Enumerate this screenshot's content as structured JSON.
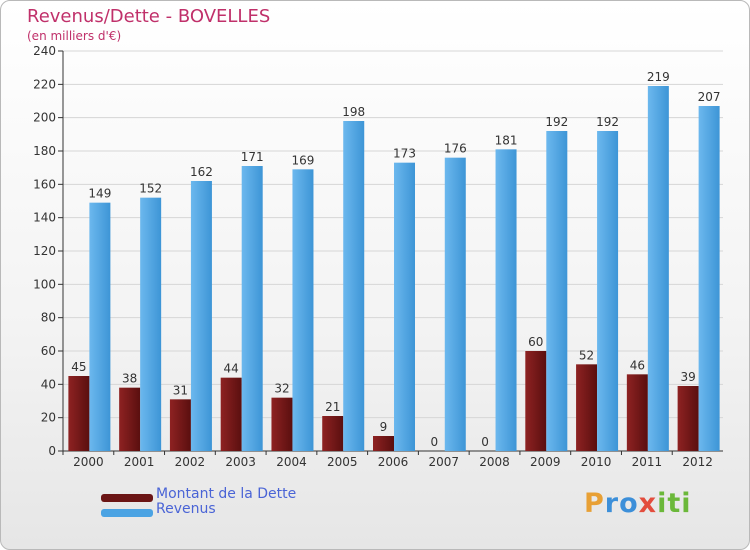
{
  "chart_data": {
    "type": "bar",
    "title": "Revenus/Dette - BOVELLES",
    "subtitle": "(en milliers d'€)",
    "categories": [
      "2000",
      "2001",
      "2002",
      "2003",
      "2004",
      "2005",
      "2006",
      "2007",
      "2008",
      "2009",
      "2010",
      "2011",
      "2012"
    ],
    "series": [
      {
        "name": "Montant de la Dette",
        "values": [
          45,
          38,
          31,
          44,
          32,
          21,
          9,
          0,
          0,
          60,
          52,
          46,
          39
        ],
        "color": "#7a1a1a"
      },
      {
        "name": "Revenus",
        "values": [
          149,
          152,
          162,
          171,
          169,
          198,
          173,
          176,
          181,
          192,
          192,
          219,
          207
        ],
        "color": "#4ba3e3"
      }
    ],
    "ylim": [
      0,
      240
    ],
    "yticks": [
      0,
      20,
      40,
      60,
      80,
      100,
      120,
      140,
      160,
      180,
      200,
      220,
      240
    ],
    "grid": true,
    "legend": "bottom-left"
  },
  "logo": {
    "text": "Proxiti",
    "parts": [
      "P",
      "ro",
      "x",
      "iti"
    ]
  }
}
